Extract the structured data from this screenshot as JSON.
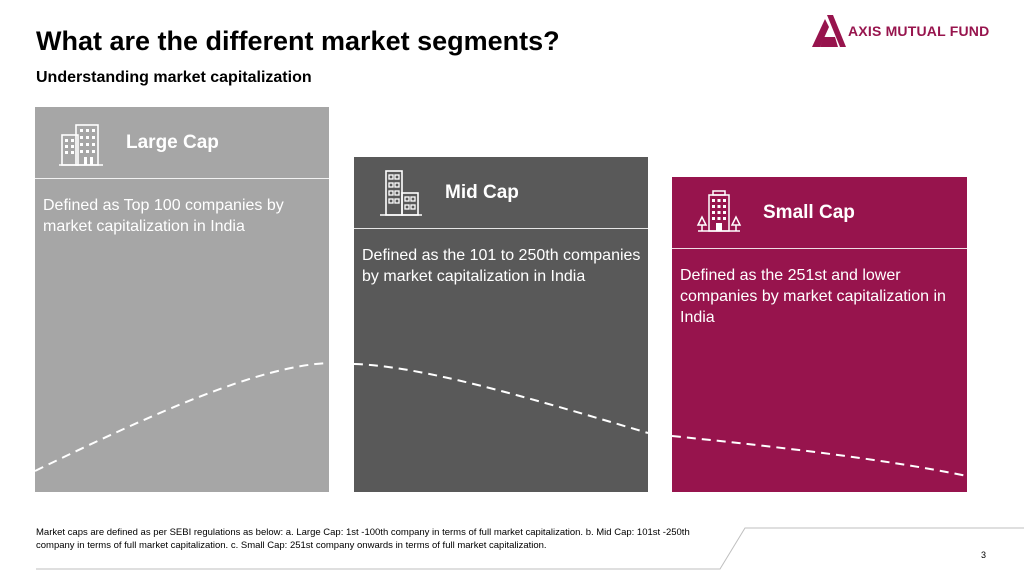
{
  "header": {
    "title": "What are the different market segments?",
    "subtitle": "Understanding market capitalization"
  },
  "logo": {
    "text": "AXIS MUTUAL FUND",
    "color": "#97144d"
  },
  "segments": [
    {
      "title": "Large Cap",
      "description": "Defined as Top 100 companies by market capitalization in India",
      "color": "#a6a6a6",
      "icon": "office-buildings-icon"
    },
    {
      "title": "Mid Cap",
      "description": "Defined as the 101 to 250th companies by market capitalization in India",
      "color": "#595959",
      "icon": "building-icon"
    },
    {
      "title": "Small Cap",
      "description": "Defined as the 251st and lower companies by market capitalization in India",
      "color": "#97144d",
      "icon": "building-trees-icon"
    }
  ],
  "footnote": "Market caps are defined as per SEBI regulations as below: a. Large Cap: 1st -100th company in terms of full market capitalization. b. Mid Cap: 101st -250th company in terms of full market capitalization. c. Small Cap: 251st company onwards in terms of full market capitalization.",
  "page_number": "3"
}
